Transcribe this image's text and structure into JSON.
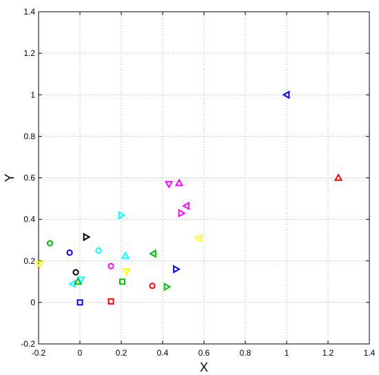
{
  "chart_data": {
    "type": "scatter",
    "xlabel": "X",
    "ylabel": "Y",
    "xlim": [
      -0.2,
      1.4
    ],
    "ylim": [
      -0.2,
      1.4
    ],
    "xticks": [
      "-0.2",
      "0",
      "0.2",
      "0.4",
      "0.6",
      "0.8",
      "1",
      "1.2",
      "1.4"
    ],
    "yticks": [
      "-0.2",
      "0",
      "0.2",
      "0.4",
      "0.6",
      "0.8",
      "1",
      "1.2",
      "1.4"
    ],
    "grid": true,
    "points": [
      {
        "x": 1.0,
        "y": 1.0,
        "marker": "triangle-left",
        "color": "#0000ff"
      },
      {
        "x": 1.25,
        "y": 0.6,
        "marker": "triangle-up",
        "color": "#ff0000"
      },
      {
        "x": 0.43,
        "y": 0.57,
        "marker": "triangle-down",
        "color": "#ff00ff"
      },
      {
        "x": 0.48,
        "y": 0.575,
        "marker": "triangle-up",
        "color": "#ff00ff"
      },
      {
        "x": 0.515,
        "y": 0.465,
        "marker": "triangle-left",
        "color": "#ff00ff"
      },
      {
        "x": 0.49,
        "y": 0.43,
        "marker": "triangle-right",
        "color": "#ff00ff"
      },
      {
        "x": 0.575,
        "y": 0.31,
        "marker": "triangle-left",
        "color": "#ffff00"
      },
      {
        "x": 0.2,
        "y": 0.42,
        "marker": "triangle-right",
        "color": "#00ffff"
      },
      {
        "x": 0.03,
        "y": 0.315,
        "marker": "triangle-right",
        "color": "#000000"
      },
      {
        "x": 0.22,
        "y": 0.225,
        "marker": "triangle-up",
        "color": "#00ffff"
      },
      {
        "x": 0.355,
        "y": 0.235,
        "marker": "triangle-left",
        "color": "#00c000"
      },
      {
        "x": 0.465,
        "y": 0.16,
        "marker": "triangle-right",
        "color": "#0000ff"
      },
      {
        "x": 0.225,
        "y": 0.15,
        "marker": "triangle-down",
        "color": "#ffff00"
      },
      {
        "x": 0.42,
        "y": 0.075,
        "marker": "triangle-right",
        "color": "#00c000"
      },
      {
        "x": -0.145,
        "y": 0.285,
        "marker": "circle",
        "color": "#00c000"
      },
      {
        "x": -0.05,
        "y": 0.24,
        "marker": "circle",
        "color": "#0000ff"
      },
      {
        "x": 0.09,
        "y": 0.25,
        "marker": "circle",
        "color": "#00ffff"
      },
      {
        "x": 0.15,
        "y": 0.175,
        "marker": "circle",
        "color": "#ff00ff"
      },
      {
        "x": -0.02,
        "y": 0.145,
        "marker": "circle",
        "color": "#000000"
      },
      {
        "x": 0.35,
        "y": 0.08,
        "marker": "circle",
        "color": "#ff0000"
      },
      {
        "x": -0.195,
        "y": 0.185,
        "marker": "triangle-down",
        "color": "#ffff00"
      },
      {
        "x": 0.005,
        "y": 0.11,
        "marker": "triangle-down",
        "color": "#00ffff"
      },
      {
        "x": -0.035,
        "y": 0.09,
        "marker": "triangle-left",
        "color": "#00ffff"
      },
      {
        "x": -0.01,
        "y": 0.1,
        "marker": "triangle-up",
        "color": "#00c000"
      },
      {
        "x": 0.205,
        "y": 0.1,
        "marker": "square",
        "color": "#00c000"
      },
      {
        "x": 0.0,
        "y": 0.0,
        "marker": "square",
        "color": "#0000ff"
      },
      {
        "x": 0.15,
        "y": 0.005,
        "marker": "square",
        "color": "#ff0000"
      }
    ]
  }
}
